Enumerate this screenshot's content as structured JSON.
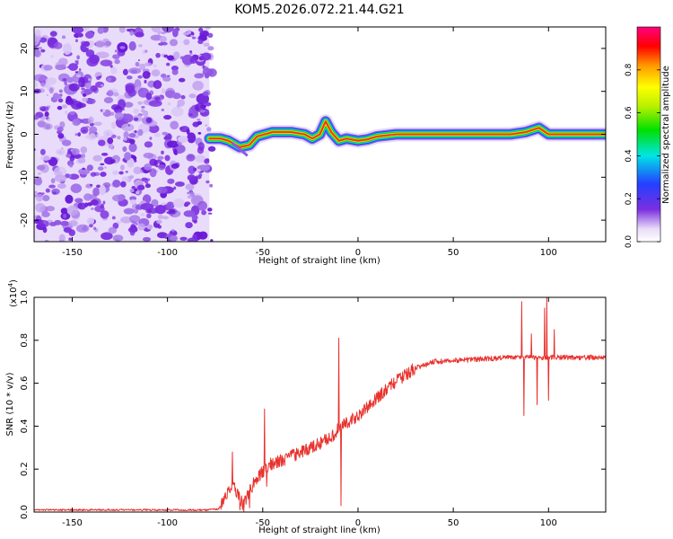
{
  "figure_title": "KOM5.2026.072.21.44.G21",
  "colors": {
    "snr_line": "#e8322e",
    "band_core": "#e5332a",
    "noise": "#7b2fe0",
    "frame": "#000000"
  },
  "chart_data": [
    {
      "name": "spectrogram",
      "type": "heatmap",
      "xlabel": "Height of straight line (km)",
      "ylabel": "Frequency (Hz)",
      "xlim": [
        -170,
        130
      ],
      "ylim": [
        -25,
        25
      ],
      "x_ticks": [
        -150,
        -100,
        -50,
        0,
        50,
        100
      ],
      "y_ticks": [
        -20,
        -10,
        0,
        10,
        20
      ],
      "x_tick_labels": [
        "-150",
        "-100",
        "-50",
        "0",
        "50",
        "100"
      ],
      "y_tick_labels": [
        "-20",
        "-10",
        "0",
        "10",
        "20"
      ],
      "noise_region_x": [
        -170,
        -78
      ],
      "band_center_freq": 0,
      "band_trace": [
        [
          -78,
          -1
        ],
        [
          -72,
          -1
        ],
        [
          -68,
          -1.5
        ],
        [
          -62,
          -3
        ],
        [
          -57,
          -2.5
        ],
        [
          -53,
          -0.5
        ],
        [
          -45,
          0.5
        ],
        [
          -35,
          0.5
        ],
        [
          -28,
          0
        ],
        [
          -24,
          -1
        ],
        [
          -20,
          0
        ],
        [
          -17,
          3
        ],
        [
          -14,
          0.5
        ],
        [
          -10,
          -1.5
        ],
        [
          -6,
          -1
        ],
        [
          0,
          -1.5
        ],
        [
          5,
          -1.2
        ],
        [
          10,
          -0.5
        ],
        [
          20,
          0
        ],
        [
          60,
          0
        ],
        [
          80,
          0
        ],
        [
          88,
          0.5
        ],
        [
          95,
          1.5
        ],
        [
          100,
          0
        ],
        [
          130,
          0
        ]
      ],
      "colorbar": {
        "label": "Normalized spectral amplitude",
        "range": [
          0,
          1
        ],
        "ticks": [
          0.0,
          0.2,
          0.4,
          0.6,
          0.8
        ],
        "tick_labels": [
          "0.0",
          "0.2",
          "0.4",
          "0.6",
          "0.8"
        ]
      }
    },
    {
      "name": "snr",
      "type": "line",
      "xlabel": "Height of straight line (km)",
      "ylabel": "SNR (10 * v/v)",
      "y_scale_label": "(x10",
      "y_scale_exponent": "4",
      "y_scale_close": ")",
      "xlim": [
        -170,
        130
      ],
      "ylim": [
        0,
        1
      ],
      "x_ticks": [
        -150,
        -100,
        -50,
        0,
        50,
        100
      ],
      "y_ticks": [
        0.0,
        0.2,
        0.4,
        0.6,
        0.8,
        1.0
      ],
      "x_tick_labels": [
        "-150",
        "-100",
        "-50",
        "0",
        "50",
        "100"
      ],
      "y_tick_labels": [
        "0.0",
        "0.2",
        "0.4",
        "0.6",
        "0.8",
        "1.0"
      ],
      "series": [
        {
          "name": "SNR",
          "base_curve": [
            [
              -170,
              0.01
            ],
            [
              -80,
              0.01
            ],
            [
              -73,
              0.015
            ],
            [
              -70,
              0.06
            ],
            [
              -66,
              0.13
            ],
            [
              -62,
              0.06
            ],
            [
              -60,
              0.03
            ],
            [
              -57,
              0.1
            ],
            [
              -52,
              0.17
            ],
            [
              -47,
              0.22
            ],
            [
              -40,
              0.24
            ],
            [
              -30,
              0.28
            ],
            [
              -20,
              0.32
            ],
            [
              -12,
              0.36
            ],
            [
              -10,
              0.4
            ],
            [
              -5,
              0.42
            ],
            [
              0,
              0.45
            ],
            [
              10,
              0.53
            ],
            [
              20,
              0.61
            ],
            [
              30,
              0.67
            ],
            [
              40,
              0.7
            ],
            [
              60,
              0.71
            ],
            [
              80,
              0.72
            ],
            [
              100,
              0.72
            ],
            [
              130,
              0.72
            ]
          ],
          "spikes": [
            [
              -66,
              0.28
            ],
            [
              -62,
              0.01
            ],
            [
              -57,
              0.02
            ],
            [
              -49,
              0.48
            ],
            [
              -48,
              0.12
            ],
            [
              -10,
              0.81
            ],
            [
              -9,
              0.03
            ],
            [
              86,
              0.98
            ],
            [
              87,
              0.45
            ],
            [
              91,
              0.83
            ],
            [
              94,
              0.5
            ],
            [
              98,
              0.95
            ],
            [
              99,
              1.0
            ],
            [
              100,
              0.52
            ],
            [
              103,
              0.85
            ]
          ]
        }
      ]
    }
  ]
}
